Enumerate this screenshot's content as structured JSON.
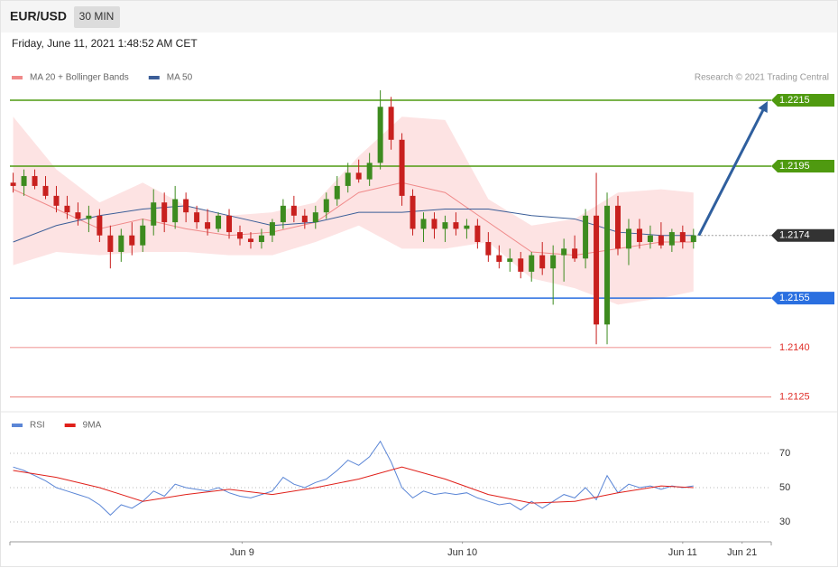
{
  "header": {
    "symbol": "EUR/USD",
    "interval": "30 MIN",
    "datetime": "Friday, June 11, 2021 1:48:52 AM CET"
  },
  "chart_data": [
    {
      "type": "candlestick",
      "credit": "Research © 2021 Trading Central",
      "up_color": "#3d8b1f",
      "down_color": "#c8201e",
      "candles": [
        [
          1.219,
          1.2193,
          1.2187,
          1.2189
        ],
        [
          1.2189,
          1.2194,
          1.2186,
          1.2192
        ],
        [
          1.2192,
          1.2194,
          1.2188,
          1.2189
        ],
        [
          1.2189,
          1.2192,
          1.2185,
          1.2186
        ],
        [
          1.2186,
          1.2189,
          1.2181,
          1.2183
        ],
        [
          1.2183,
          1.2186,
          1.2179,
          1.2181
        ],
        [
          1.2181,
          1.2184,
          1.2177,
          1.2179
        ],
        [
          1.2179,
          1.2183,
          1.2175,
          1.218
        ],
        [
          1.218,
          1.2182,
          1.2172,
          1.2174
        ],
        [
          1.2174,
          1.2177,
          1.2164,
          1.2169
        ],
        [
          1.2169,
          1.2176,
          1.2166,
          1.2174
        ],
        [
          1.2174,
          1.2178,
          1.2168,
          1.2171
        ],
        [
          1.2171,
          1.2179,
          1.2169,
          1.2177
        ],
        [
          1.2177,
          1.2188,
          1.2174,
          1.2184
        ],
        [
          1.2184,
          1.2187,
          1.2175,
          1.2178
        ],
        [
          1.2178,
          1.2189,
          1.2176,
          1.2185
        ],
        [
          1.2185,
          1.2187,
          1.2178,
          1.2181
        ],
        [
          1.2181,
          1.2183,
          1.2176,
          1.2178
        ],
        [
          1.2178,
          1.2182,
          1.2174,
          1.2176
        ],
        [
          1.2176,
          1.2181,
          1.2175,
          1.218
        ],
        [
          1.218,
          1.2182,
          1.2173,
          1.2175
        ],
        [
          1.2175,
          1.2177,
          1.2171,
          1.2173
        ],
        [
          1.2173,
          1.2175,
          1.217,
          1.2172
        ],
        [
          1.2172,
          1.2176,
          1.217,
          1.2174
        ],
        [
          1.2174,
          1.2179,
          1.2172,
          1.2178
        ],
        [
          1.2178,
          1.2185,
          1.2176,
          1.2183
        ],
        [
          1.2183,
          1.2186,
          1.2178,
          1.218
        ],
        [
          1.218,
          1.2182,
          1.2176,
          1.2178
        ],
        [
          1.2178,
          1.2183,
          1.2176,
          1.2181
        ],
        [
          1.2181,
          1.2187,
          1.2179,
          1.2185
        ],
        [
          1.2185,
          1.2192,
          1.2183,
          1.2189
        ],
        [
          1.2189,
          1.2196,
          1.2187,
          1.2193
        ],
        [
          1.2193,
          1.2197,
          1.219,
          1.2191
        ],
        [
          1.2191,
          1.2199,
          1.2189,
          1.2196
        ],
        [
          1.2196,
          1.2218,
          1.2194,
          1.2213
        ],
        [
          1.2213,
          1.2216,
          1.22,
          1.2203
        ],
        [
          1.2203,
          1.2205,
          1.2183,
          1.2186
        ],
        [
          1.2186,
          1.2188,
          1.2174,
          1.2176
        ],
        [
          1.2176,
          1.2181,
          1.2172,
          1.2179
        ],
        [
          1.2179,
          1.2181,
          1.2173,
          1.2176
        ],
        [
          1.2176,
          1.218,
          1.2172,
          1.2178
        ],
        [
          1.2178,
          1.2181,
          1.2174,
          1.2176
        ],
        [
          1.2176,
          1.2179,
          1.2173,
          1.2177
        ],
        [
          1.2177,
          1.2179,
          1.217,
          1.2172
        ],
        [
          1.2172,
          1.2175,
          1.2166,
          1.2168
        ],
        [
          1.2168,
          1.2171,
          1.2164,
          1.2166
        ],
        [
          1.2166,
          1.217,
          1.2163,
          1.2167
        ],
        [
          1.2167,
          1.2169,
          1.2161,
          1.2163
        ],
        [
          1.2163,
          1.2169,
          1.216,
          1.2168
        ],
        [
          1.2168,
          1.2172,
          1.2162,
          1.2164
        ],
        [
          1.2164,
          1.2171,
          1.2153,
          1.2168
        ],
        [
          1.2168,
          1.2173,
          1.216,
          1.217
        ],
        [
          1.217,
          1.2174,
          1.2166,
          1.2167
        ],
        [
          1.2167,
          1.2182,
          1.2164,
          1.218
        ],
        [
          1.218,
          1.2193,
          1.2141,
          1.2147
        ],
        [
          1.2147,
          1.2187,
          1.2141,
          1.2183
        ],
        [
          1.2183,
          1.2186,
          1.2168,
          1.217
        ],
        [
          1.217,
          1.2179,
          1.2165,
          1.2176
        ],
        [
          1.2176,
          1.2179,
          1.217,
          1.2172
        ],
        [
          1.2172,
          1.2177,
          1.217,
          1.2174
        ],
        [
          1.2174,
          1.2178,
          1.217,
          1.2171
        ],
        [
          1.2171,
          1.2176,
          1.2169,
          1.2175
        ],
        [
          1.2175,
          1.2177,
          1.217,
          1.2172
        ],
        [
          1.2172,
          1.2176,
          1.217,
          1.2174
        ]
      ],
      "overlays": [
        {
          "name": "MA 20 + Bollinger Bands",
          "color": "#f08a8a",
          "band_color": "#fde3e3",
          "x": [
            0,
            4,
            8,
            12,
            16,
            20,
            24,
            28,
            32,
            36,
            40,
            44,
            48,
            52,
            56,
            60,
            63
          ],
          "values": [
            1.2188,
            1.2182,
            1.2176,
            1.2179,
            1.2176,
            1.2174,
            1.2175,
            1.2178,
            1.2187,
            1.219,
            1.2187,
            1.2178,
            1.2169,
            1.2168,
            1.217,
            1.2172,
            1.2172
          ],
          "upper": [
            1.221,
            1.2194,
            1.2184,
            1.219,
            1.2183,
            1.218,
            1.2181,
            1.2184,
            1.2198,
            1.221,
            1.2209,
            1.2185,
            1.2177,
            1.2179,
            1.2187,
            1.2188,
            1.2187
          ],
          "lower": [
            1.2165,
            1.2169,
            1.2168,
            1.2169,
            1.2169,
            1.2168,
            1.2168,
            1.2172,
            1.2177,
            1.217,
            1.217,
            1.2172,
            1.2161,
            1.2158,
            1.2153,
            1.2155,
            1.2157
          ]
        },
        {
          "name": "MA 50",
          "color": "#3b5e98",
          "x": [
            0,
            4,
            8,
            12,
            16,
            20,
            24,
            28,
            32,
            36,
            40,
            44,
            48,
            52,
            56,
            60,
            63
          ],
          "values": [
            1.2172,
            1.2177,
            1.218,
            1.2182,
            1.2183,
            1.218,
            1.2177,
            1.2178,
            1.2181,
            1.2181,
            1.2182,
            1.2182,
            1.218,
            1.2179,
            1.2175,
            1.2174,
            1.2174
          ]
        }
      ],
      "levels": [
        {
          "value": 1.2215,
          "color": "#4f9a10",
          "style": "badge"
        },
        {
          "value": 1.2195,
          "color": "#4f9a10",
          "style": "badge"
        },
        {
          "value": 1.2174,
          "color": "#333333",
          "style": "current"
        },
        {
          "value": 1.2155,
          "color": "#2a6fe0",
          "style": "badge"
        },
        {
          "value": 1.214,
          "label": "1.2140",
          "color": "#e0302a",
          "style": "text"
        },
        {
          "value": 1.2125,
          "color": "#e0302a",
          "style": "text"
        }
      ],
      "arrow_color": "#2f5f9e",
      "ylim": [
        1.2123,
        1.2218
      ],
      "xlim": [
        -0.3,
        70.2
      ]
    },
    {
      "type": "line",
      "series": [
        {
          "name": "RSI",
          "color": "#5b86d6",
          "values": [
            62,
            60,
            57,
            54,
            50,
            48,
            46,
            44,
            40,
            34,
            40,
            38,
            42,
            48,
            45,
            52,
            50,
            49,
            48,
            50,
            47,
            45,
            44,
            46,
            48,
            56,
            52,
            50,
            53,
            55,
            60,
            66,
            63,
            68,
            77,
            65,
            50,
            44,
            48,
            46,
            47,
            46,
            47,
            44,
            42,
            40,
            41,
            37,
            42,
            38,
            42,
            46,
            44,
            50,
            43,
            57,
            47,
            52,
            50,
            51,
            49,
            51,
            50,
            51
          ]
        },
        {
          "name": "9MA",
          "color": "#e0201a",
          "x": [
            0,
            4,
            8,
            12,
            16,
            20,
            24,
            28,
            32,
            36,
            40,
            44,
            48,
            52,
            56,
            60,
            63
          ],
          "values": [
            60,
            56,
            50,
            42,
            46,
            49,
            46,
            50,
            55,
            62,
            55,
            46,
            41,
            42,
            47,
            51,
            50
          ]
        }
      ],
      "ylim": [
        20,
        80
      ],
      "yticks": [
        30,
        50,
        70
      ],
      "grid": true,
      "xlim": [
        -0.3,
        70.2
      ],
      "xticks": [
        {
          "value": 21.2,
          "label": "Jun 9"
        },
        {
          "value": 41.6,
          "label": "Jun 10"
        },
        {
          "value": 62,
          "label": "Jun 11"
        },
        {
          "value": 67.5,
          "label": "Jun 21"
        }
      ]
    }
  ]
}
